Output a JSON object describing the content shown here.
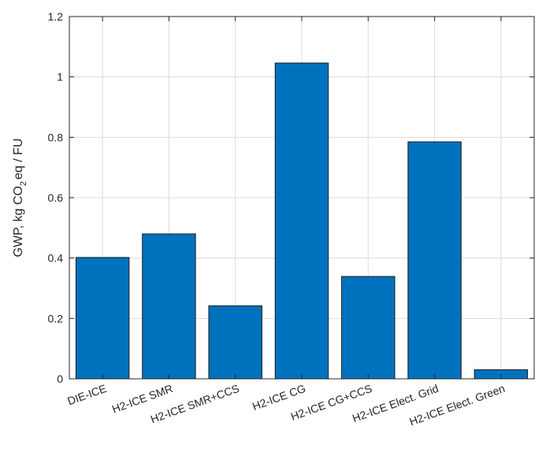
{
  "chart_data": {
    "type": "bar",
    "categories": [
      "DIE-ICE",
      "H2-ICE SMR",
      "H2-ICE SMR+CCS",
      "H2-ICE CG",
      "H2-ICE CG+CCS",
      "H2-ICE Elect. Grid",
      "H2-ICE Elect. Green"
    ],
    "values": [
      0.402,
      0.48,
      0.242,
      1.046,
      0.339,
      0.785,
      0.03
    ],
    "ylabel_parts": {
      "pre": "GWP, kg CO",
      "sub": "2",
      "post": "eq / FU"
    },
    "xlabel": "",
    "title": "",
    "ylim": [
      0,
      1.2
    ],
    "yticks": [
      0,
      0.2,
      0.4,
      0.6,
      0.8,
      1,
      1.2
    ],
    "ytick_labels": [
      "0",
      "0.2",
      "0.4",
      "0.6",
      "0.8",
      "1",
      "1.2"
    ],
    "grid": true,
    "bar_color": "#0072BD",
    "edge_color": "#1a1a1a"
  }
}
